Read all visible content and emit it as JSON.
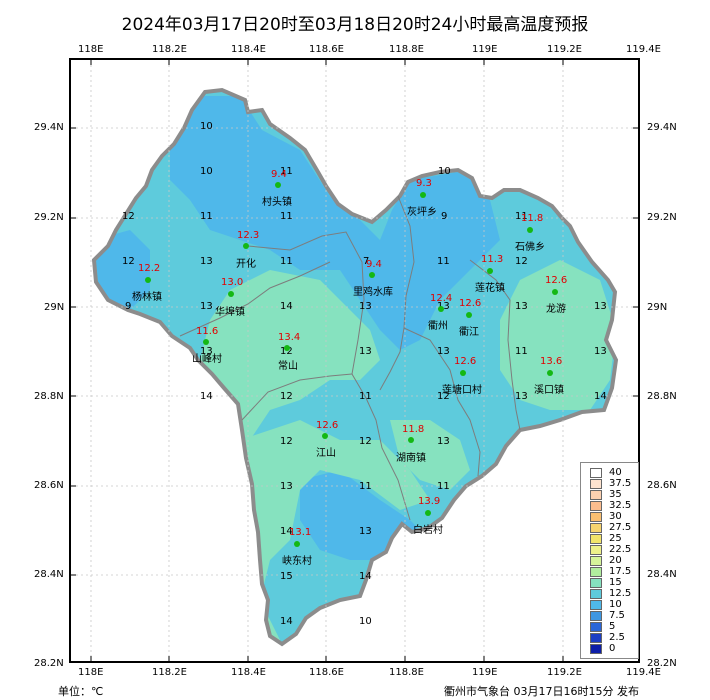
{
  "title": "2024年03月17日20时至03月18日20时24小时最高温度预报",
  "lon_ticks": [
    "118E",
    "118.2E",
    "118.4E",
    "118.6E",
    "118.8E",
    "119E",
    "119.2E",
    "119.4E"
  ],
  "lat_ticks": [
    "29.4N",
    "29.2N",
    "29N",
    "28.8N",
    "28.6N",
    "28.4N",
    "28.2N"
  ],
  "unit_label": "单位：℃",
  "publisher": "衢州市气象台 03月17日16时15分 发布",
  "colors": {
    "water": "#4fb8ea",
    "land_mid": "#5ecbdc",
    "land_warm": "#86e2bf",
    "outline": "#8c8c8c",
    "station_dot": "#14b814",
    "station_value": "#e00000"
  },
  "stations": [
    {
      "name": "村头镇",
      "value": "9.4"
    },
    {
      "name": "灰坪乡",
      "value": "9.3"
    },
    {
      "name": "石佛乡",
      "value": "11.8"
    },
    {
      "name": "开化",
      "value": "12.3"
    },
    {
      "name": "杨林镇",
      "value": "12.2"
    },
    {
      "name": "华埠镇",
      "value": "13.0"
    },
    {
      "name": "里鸡水库",
      "value": "9.4"
    },
    {
      "name": "莲花镇",
      "value": "11.3"
    },
    {
      "name": "衢州",
      "value": "12.4"
    },
    {
      "name": "衢江",
      "value": "12.6"
    },
    {
      "name": "龙游",
      "value": "12.6"
    },
    {
      "name": "山峰村",
      "value": "11.6"
    },
    {
      "name": "常山",
      "value": "13.4"
    },
    {
      "name": "莲塘口村",
      "value": "12.6"
    },
    {
      "name": "溪口镇",
      "value": "13.6"
    },
    {
      "name": "江山",
      "value": "12.6"
    },
    {
      "name": "湖南镇",
      "value": "11.8"
    },
    {
      "name": "白岩村",
      "value": "13.9"
    },
    {
      "name": "峡东村",
      "value": "13.1"
    }
  ],
  "grid_values": [
    "10",
    "10",
    "11",
    "10",
    "12",
    "11",
    "11",
    "9",
    "11",
    "12",
    "13",
    "11",
    "7",
    "11",
    "12",
    "9",
    "13",
    "14",
    "13",
    "13",
    "13",
    "13",
    "13",
    "12",
    "13",
    "13",
    "11",
    "13",
    "12",
    "11",
    "12",
    "13",
    "12",
    "12",
    "13",
    "13",
    "11",
    "11",
    "14",
    "13",
    "15",
    "14",
    "10",
    "14",
    "14",
    "14"
  ],
  "legend": {
    "labels": [
      "40",
      "37.5",
      "35",
      "32.5",
      "30",
      "27.5",
      "25",
      "22.5",
      "20",
      "17.5",
      "15",
      "12.5",
      "10",
      "7.5",
      "5",
      "2.5",
      "0"
    ],
    "colors": [
      "#ffffff",
      "#fde3cf",
      "#fcd1b0",
      "#fbbd8e",
      "#f9c072",
      "#f6d46f",
      "#f2e46a",
      "#eef08a",
      "#d6f49a",
      "#b1ee9e",
      "#86e2bf",
      "#5ecbdc",
      "#4fb8ea",
      "#3f97e2",
      "#2b66d8",
      "#1c3ec4",
      "#0d1ea8"
    ]
  }
}
